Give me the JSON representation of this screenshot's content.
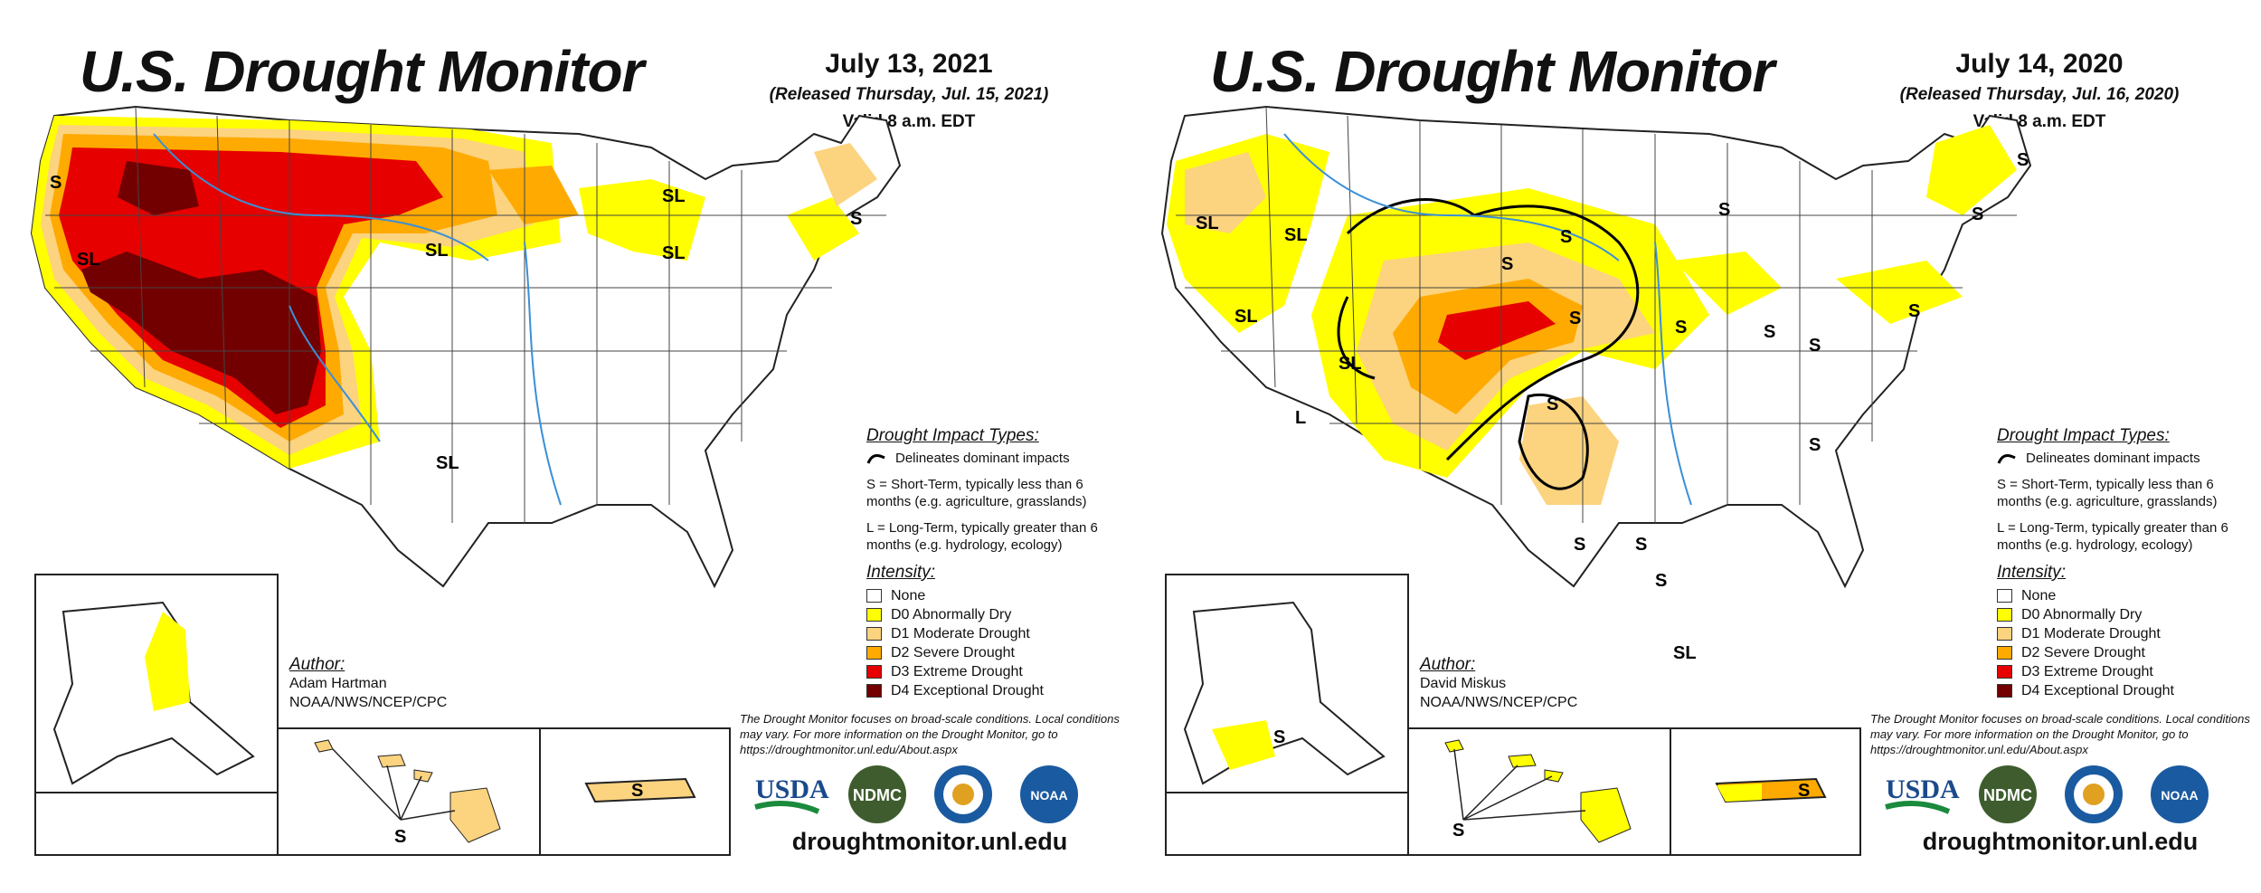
{
  "colors": {
    "none": "#ffffff",
    "d0": "#ffff00",
    "d1": "#fcd37f",
    "d2": "#ffaa00",
    "d3": "#e60000",
    "d4": "#730000",
    "water": "#3b8fd6",
    "boundary": "#222222"
  },
  "maps": [
    {
      "title": "U.S. Drought Monitor",
      "date": "July 13, 2021",
      "released": "(Released Thursday, Jul. 15, 2021)",
      "valid": "Valid 8 a.m. EDT",
      "impact_heading": "Drought Impact Types:",
      "impact_delineates": "Delineates dominant impacts",
      "impact_s": "S = Short-Term, typically less than 6 months (e.g. agriculture, grasslands)",
      "impact_l": "L = Long-Term, typically greater than 6 months (e.g. hydrology, ecology)",
      "intensity_heading": "Intensity:",
      "intensity": [
        "None",
        "D0 Abnormally Dry",
        "D1 Moderate Drought",
        "D2 Severe Drought",
        "D3 Extreme Drought",
        "D4 Exceptional Drought"
      ],
      "author_heading": "Author:",
      "author_name": "Adam Hartman",
      "author_org": "NOAA/NWS/NCEP/CPC",
      "note": "The Drought Monitor focuses on broad-scale conditions. Local conditions may vary. For more information on the Drought Monitor, go to https://droughtmonitor.unl.edu/About.aspx",
      "logos": {
        "usda": "USDA",
        "ndmc": "NDMC",
        "noaa": "NOAA"
      },
      "url": "droughtmonitor.unl.edu",
      "map_labels": {
        "nw_s": "S",
        "sl_north": "SL",
        "sl_west": "SL",
        "sl_south": "SL",
        "sl_east": "SL",
        "s_upper_midwest": "SL",
        "s_east": "S",
        "s_pr": "S",
        "s_hawaii": "S"
      }
    },
    {
      "title": "U.S. Drought Monitor",
      "date": "July 14, 2020",
      "released": "(Released Thursday, Jul. 16, 2020)",
      "valid": "Valid 8 a.m. EDT",
      "impact_heading": "Drought Impact Types:",
      "impact_delineates": "Delineates dominant impacts",
      "impact_s": "S = Short-Term, typically less than 6 months (e.g. agriculture, grasslands)",
      "impact_l": "L = Long-Term, typically greater than 6 months (e.g. hydrology, ecology)",
      "intensity_heading": "Intensity:",
      "intensity": [
        "None",
        "D0 Abnormally Dry",
        "D1 Moderate Drought",
        "D2 Severe Drought",
        "D3 Extreme Drought",
        "D4 Exceptional Drought"
      ],
      "author_heading": "Author:",
      "author_name": "David Miskus",
      "author_org": "NOAA/NWS/NCEP/CPC",
      "note": "The Drought Monitor focuses on broad-scale conditions. Local conditions may vary. For more information on the Drought Monitor, go to https://droughtmonitor.unl.edu/About.aspx",
      "logos": {
        "usda": "USDA",
        "ndmc": "NDMC",
        "noaa": "NOAA"
      },
      "url": "droughtmonitor.unl.edu",
      "map_labels": {
        "sl_nw": "SL",
        "sl_id": "SL",
        "sl_nv": "SL",
        "sl_co": "SL",
        "l_az": "L",
        "s_mt": "S",
        "s_wy": "S",
        "s_ne": "S",
        "s_ks": "S",
        "s_ok": "S",
        "s_ia": "S",
        "s_mn": "S",
        "s_oh": "S",
        "s_ny": "S",
        "s_me": "S",
        "s_nj": "S",
        "s_in": "S",
        "s_ky": "S",
        "s_tx": "S",
        "s_tx2": "S",
        "sl_tx": "SL",
        "s_ak": "S",
        "s_hi": "S",
        "s_pr": "S"
      }
    }
  ]
}
